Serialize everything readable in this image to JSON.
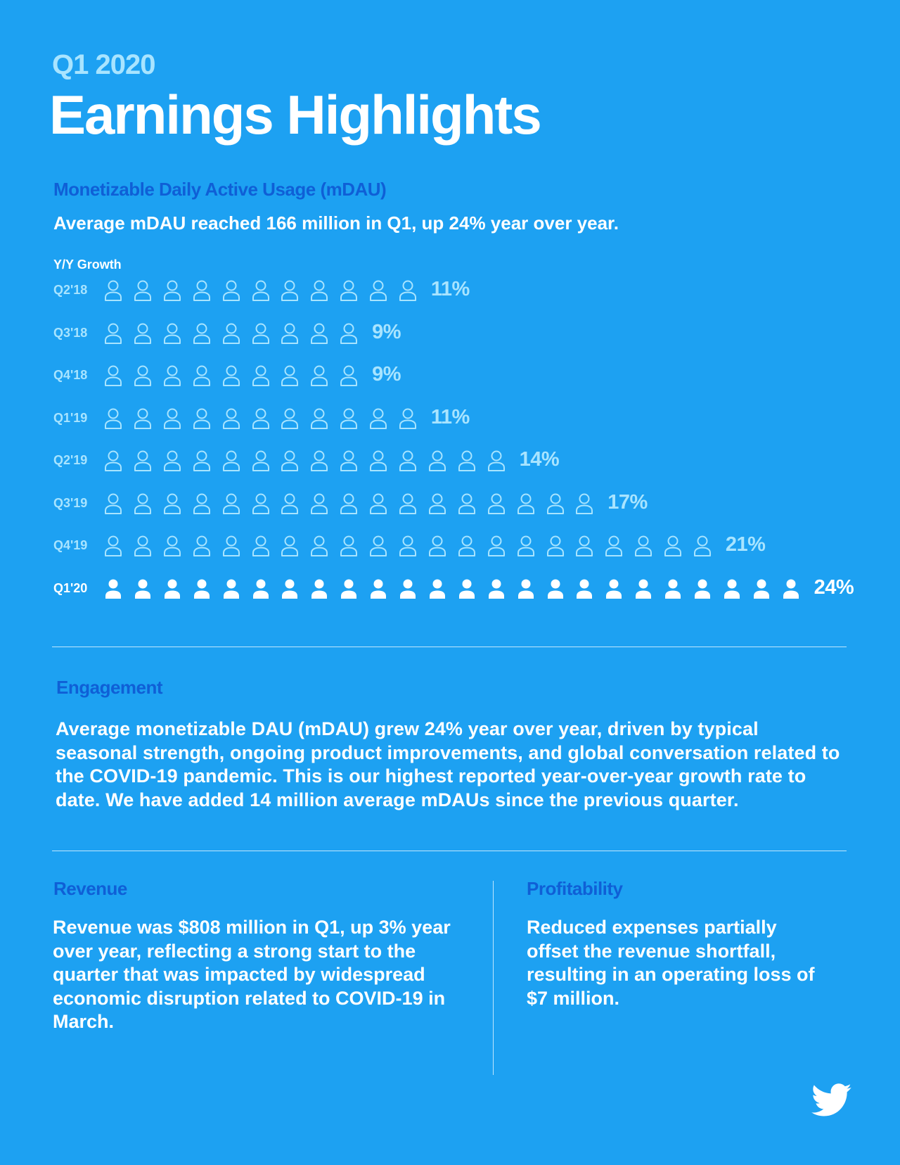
{
  "header": {
    "period": "Q1 2020",
    "title": "Earnings Highlights"
  },
  "mdau": {
    "heading": "Monetizable Daily Active Usage (mDAU)",
    "summary": "Average mDAU reached 166 million in Q1, up 24% year over year.",
    "axis_label": "Y/Y Growth"
  },
  "chart_data": {
    "type": "bar",
    "ylabel": "Y/Y Growth",
    "categories": [
      "Q2'18",
      "Q3'18",
      "Q4'18",
      "Q1'19",
      "Q2'19",
      "Q3'19",
      "Q4'19",
      "Q1'20"
    ],
    "series": [
      {
        "values": [
          11,
          9,
          9,
          11,
          14,
          17,
          21,
          24
        ],
        "labels": [
          "11%",
          "9%",
          "9%",
          "11%",
          "14%",
          "17%",
          "21%",
          "24%"
        ]
      }
    ],
    "unit": "person icon = 1 percentage point",
    "highlight_category": "Q1'20"
  },
  "engagement": {
    "heading": "Engagement",
    "body": "Average monetizable DAU (mDAU) grew 24% year over year, driven by typical seasonal strength, ongoing product improvements, and global conversation related to the COVID-19 pandemic. This is our highest reported year-over-year growth rate to date. We have added 14 million average mDAUs since the previous quarter."
  },
  "revenue": {
    "heading": "Revenue",
    "body": "Revenue was $808 million in Q1, up 3% year over year, reflecting a strong start to the quarter that was impacted by widespread economic disruption related to COVID-19 in March."
  },
  "profitability": {
    "heading": "Profitability",
    "body": "Reduced expenses partially offset the revenue shortfall, resulting in an operating loss of $7 million."
  },
  "logo": {
    "icon": "twitter-bird-icon"
  },
  "colors": {
    "background": "#1da1f2",
    "heading_blue": "#0f5fd6",
    "light_blue": "#a8e4ff",
    "white": "#ffffff"
  }
}
